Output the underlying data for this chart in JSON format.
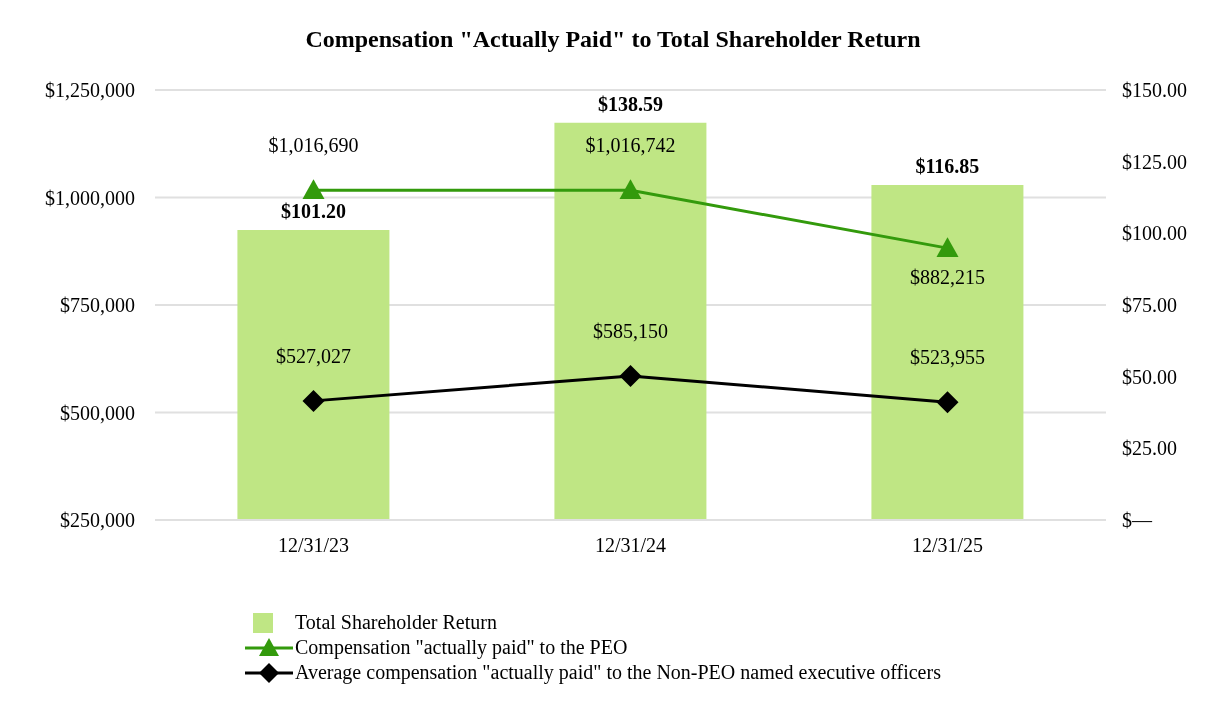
{
  "chart_data": {
    "type": "bar",
    "title": "Compensation \"Actually Paid\" to Total Shareholder Return",
    "categories": [
      "12/31/23",
      "12/31/24",
      "12/31/25"
    ],
    "series": [
      {
        "name": "Total Shareholder Return",
        "axis": "y2",
        "color": "#bfe684",
        "values": [
          101.2,
          138.59,
          116.85
        ],
        "value_labels": [
          "$101.20",
          "$138.59",
          "$116.85"
        ]
      },
      {
        "name": "Compensation \"actually paid\" to the PEO",
        "type": "line",
        "color": "#339a0c",
        "marker": "triangle",
        "values": [
          1016690,
          1016742,
          882215
        ],
        "value_labels": [
          "$1,016,690",
          "$1,016,742",
          "$882,215"
        ]
      },
      {
        "name": "Average compensation \"actually paid\" to the Non-PEO named executive officers",
        "type": "line",
        "color": "#000000",
        "marker": "diamond",
        "values": [
          527027,
          585150,
          523955
        ],
        "value_labels": [
          "$527,027",
          "$585,150",
          "$523,955"
        ]
      }
    ],
    "ylim": [
      250000,
      1250000
    ],
    "yticks": [
      {
        "value": 250000,
        "label": "$250,000"
      },
      {
        "value": 500000,
        "label": "$500,000"
      },
      {
        "value": 750000,
        "label": "$750,000"
      },
      {
        "value": 1000000,
        "label": "$1,000,000"
      },
      {
        "value": 1250000,
        "label": "$1,250,000"
      }
    ],
    "y2lim": [
      0,
      150
    ],
    "y2ticks": [
      {
        "value": 0,
        "label": "$—"
      },
      {
        "value": 25,
        "label": "$25.00"
      },
      {
        "value": 50,
        "label": "$50.00"
      },
      {
        "value": 75,
        "label": "$75.00"
      },
      {
        "value": 100,
        "label": "$100.00"
      },
      {
        "value": 125,
        "label": "$125.00"
      },
      {
        "value": 150,
        "label": "$150.00"
      }
    ],
    "grid": "y",
    "legend": "bottom"
  }
}
